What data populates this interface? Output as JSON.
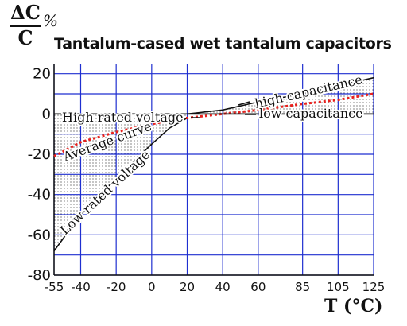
{
  "ylabel_numerator": "ΔC",
  "ylabel_denominator": "C",
  "ylabel_unit": "%",
  "xlabel": "T (°C)",
  "chart_data": {
    "type": "line",
    "title": "Tantalum-cased wet tantalum capacitors",
    "xlabel": "T (°C)",
    "ylabel": "ΔC/C %",
    "xlim": [
      -55,
      125
    ],
    "ylim": [
      -80,
      25
    ],
    "x_ticks": [
      -55,
      -40,
      -20,
      0,
      20,
      40,
      60,
      85,
      105,
      125
    ],
    "x_tick_labels": [
      "-55",
      "-40",
      "-20",
      "0",
      "20",
      "40",
      "60",
      "85",
      "105",
      "125"
    ],
    "y_ticks": [
      -80,
      -60,
      -40,
      -20,
      0,
      20
    ],
    "y_tick_labels": [
      "-80",
      "-60",
      "-40",
      "-20",
      "0",
      "20"
    ],
    "grid": true,
    "colors": {
      "grid": "#1f2fd0",
      "average": "#e8211d",
      "curves": "#111111",
      "hatch": "#333333"
    },
    "series": [
      {
        "name": "High rated voltage",
        "x": [
          -55,
          -20,
          0,
          20,
          40,
          60,
          85,
          105,
          125
        ],
        "y": [
          0,
          0,
          0,
          0,
          0,
          0,
          0,
          0,
          0
        ]
      },
      {
        "name": "Low rated voltage",
        "x": [
          -55,
          -40,
          -20,
          0,
          10,
          20
        ],
        "y": [
          -68,
          -50,
          -32,
          -15,
          -7,
          -2
        ]
      },
      {
        "name": "Average curve",
        "x": [
          -55,
          -40,
          -20,
          0,
          20,
          40,
          60,
          85,
          105,
          125
        ],
        "y": [
          -21,
          -14,
          -9,
          -5,
          -2,
          0,
          2,
          5,
          7,
          10
        ]
      },
      {
        "name": "high capacitance",
        "x": [
          20,
          40,
          60,
          85,
          105,
          125
        ],
        "y": [
          0,
          2,
          6,
          10,
          14,
          18
        ]
      },
      {
        "name": "low capacitance",
        "x": [
          20,
          40,
          60,
          85,
          105,
          125
        ],
        "y": [
          0,
          0,
          0,
          0,
          0,
          0
        ]
      }
    ],
    "annotations": [
      "High rated voltage",
      "Average curve",
      "Low rated voltage",
      "high capacitance",
      "low capacitance"
    ]
  }
}
